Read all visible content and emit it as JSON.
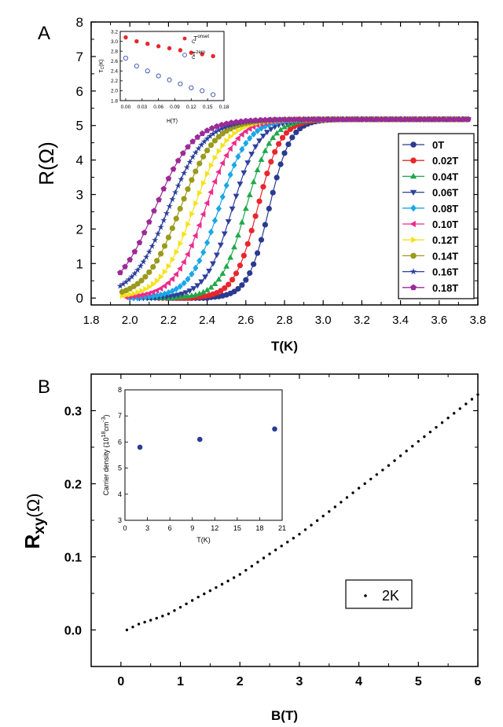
{
  "panelA": {
    "label": "A",
    "xlabel": "T(K)",
    "ylabel": "R(Ω)",
    "xticks": [
      "1.8",
      "2.0",
      "2.2",
      "2.4",
      "2.6",
      "2.8",
      "3.0",
      "3.2",
      "3.4",
      "3.6",
      "3.8"
    ],
    "yticks": [
      "0",
      "1",
      "2",
      "3",
      "4",
      "5",
      "6",
      "7",
      "8"
    ],
    "legend": [
      "0T",
      "0.02T",
      "0.04T",
      "0.06T",
      "0.08T",
      "0.10T",
      "0.12T",
      "0.14T",
      "0.16T",
      "0.18T"
    ],
    "colors": [
      "#2b3a8f",
      "#e8262c",
      "#1fa84a",
      "#2e3f9e",
      "#1aa7e6",
      "#ec2b8c",
      "#f5e21a",
      "#9a9a1c",
      "#2b3f9b",
      "#9c2a97"
    ],
    "inset": {
      "xlabel": "H(T)",
      "ylabel": "Tₑ(K)",
      "xticks": [
        "0.00",
        "0.03",
        "0.06",
        "0.09",
        "0.12",
        "0.15",
        "0.18"
      ],
      "yticks": [
        "1.8",
        "2.0",
        "2.2",
        "2.4",
        "2.6",
        "2.8",
        "3.0",
        "3.2"
      ],
      "legend_onset": "T",
      "legend_onset_sup": "onset",
      "legend_onset_sub": "C",
      "legend_zero": "T",
      "legend_zero_sup": "zero",
      "legend_zero_sub": "C"
    }
  },
  "panelB": {
    "label": "B",
    "xlabel": "B(T)",
    "ylabel_main": "R",
    "ylabel_sub": "xy",
    "ylabel_tail": "(Ω)",
    "xticks": [
      "0",
      "1",
      "2",
      "3",
      "4",
      "5",
      "6"
    ],
    "yticks": [
      "0.0",
      "0.1",
      "0.2",
      "0.3"
    ],
    "legend": "2K",
    "inset": {
      "xlabel": "T(K)",
      "ylabel": "Carrier density (10",
      "ylabel_sup1": "18",
      "ylabel_mid": "cm",
      "ylabel_sup2": "-3",
      "ylabel_end": ")",
      "xticks": [
        "0",
        "3",
        "6",
        "9",
        "12",
        "15",
        "18",
        "21"
      ],
      "yticks": [
        "3",
        "4",
        "5",
        "6",
        "7",
        "8"
      ]
    }
  },
  "chart_data": [
    {
      "type": "line",
      "title": "",
      "xlabel": "T(K)",
      "ylabel": "R(Ω)",
      "xlim": [
        1.8,
        3.8
      ],
      "ylim": [
        -0.2,
        8
      ],
      "Rn": 5.18,
      "series": [
        {
          "name": "0T",
          "tc": 2.72,
          "w": 0.055,
          "tmin": 2.2,
          "marker": "circle",
          "step": 0.02
        },
        {
          "name": "0.02T",
          "tc": 2.66,
          "w": 0.06,
          "tmin": 2.15,
          "marker": "circle",
          "step": 0.02
        },
        {
          "name": "0.04T",
          "tc": 2.6,
          "w": 0.065,
          "tmin": 2.1,
          "marker": "triangle-up",
          "step": 0.02
        },
        {
          "name": "0.06T",
          "tc": 2.53,
          "w": 0.07,
          "tmin": 2.05,
          "marker": "triangle-down",
          "step": 0.02
        },
        {
          "name": "0.08T",
          "tc": 2.46,
          "w": 0.075,
          "tmin": 2.0,
          "marker": "diamond",
          "step": 0.02
        },
        {
          "name": "0.10T",
          "tc": 2.39,
          "w": 0.08,
          "tmin": 1.98,
          "marker": "triangle-left",
          "step": 0.02
        },
        {
          "name": "0.12T",
          "tc": 2.33,
          "w": 0.085,
          "tmin": 1.96,
          "marker": "triangle-right",
          "step": 0.02
        },
        {
          "name": "0.14T",
          "tc": 2.26,
          "w": 0.09,
          "tmin": 1.96,
          "marker": "circle",
          "step": 0.02
        },
        {
          "name": "0.16T",
          "tc": 2.2,
          "w": 0.095,
          "tmin": 1.95,
          "marker": "star",
          "step": 0.015
        },
        {
          "name": "0.18T",
          "tc": 2.13,
          "w": 0.1,
          "tmin": 1.95,
          "marker": "pentagon",
          "step": 0.025
        }
      ],
      "inset": {
        "type": "scatter",
        "xlabel": "H(T)",
        "xlim": [
          -0.01,
          0.18
        ],
        "ylim": [
          1.8,
          3.2
        ],
        "onset": {
          "x": [
            0.0,
            0.02,
            0.04,
            0.06,
            0.08,
            0.1,
            0.12,
            0.14,
            0.16
          ],
          "y": [
            3.08,
            3.0,
            2.95,
            2.9,
            2.86,
            2.82,
            2.77,
            2.74,
            2.7
          ]
        },
        "zero": {
          "x": [
            0.0,
            0.02,
            0.04,
            0.06,
            0.08,
            0.1,
            0.12,
            0.14,
            0.16
          ],
          "y": [
            2.66,
            2.5,
            2.4,
            2.3,
            2.22,
            2.14,
            2.06,
            2.0,
            1.92
          ]
        }
      }
    },
    {
      "type": "scatter",
      "title": "",
      "xlabel": "B(T)",
      "ylabel": "Rxy(Ω)",
      "xlim": [
        -0.5,
        6
      ],
      "ylim": [
        -0.05,
        0.35
      ],
      "series": [
        {
          "name": "2K",
          "x_start": 0.1,
          "x_end": 6.0,
          "n": 60,
          "knots_x": [
            0.1,
            0.3,
            0.6,
            0.8,
            1.0,
            1.3,
            1.6,
            2.0,
            2.5,
            3.0,
            3.5,
            4.0,
            4.5,
            5.0,
            5.5,
            6.0
          ],
          "knots_y": [
            0.0,
            0.008,
            0.016,
            0.022,
            0.031,
            0.045,
            0.058,
            0.076,
            0.104,
            0.131,
            0.162,
            0.194,
            0.225,
            0.258,
            0.29,
            0.322
          ]
        }
      ],
      "inset": {
        "type": "scatter",
        "xlabel": "T(K)",
        "xlim": [
          0,
          21
        ],
        "ylim": [
          3,
          8
        ],
        "x": [
          2,
          10,
          20
        ],
        "y": [
          5.8,
          6.1,
          6.5
        ]
      }
    }
  ]
}
